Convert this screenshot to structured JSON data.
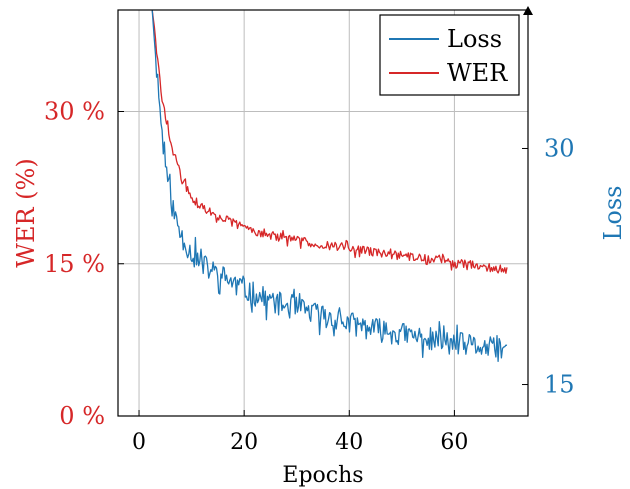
{
  "chart_data": {
    "type": "line",
    "xlabel": "Epochs",
    "ylabel_left": "WER (%)",
    "ylabel_right": "Loss",
    "x_range": [
      -4,
      74
    ],
    "left_axis": {
      "range": [
        0,
        40
      ],
      "ticks": [
        0,
        15,
        30
      ],
      "tick_labels": [
        "0 %",
        "15 %",
        "30 %"
      ]
    },
    "right_axis": {
      "range": [
        13.0,
        38.8
      ],
      "ticks": [
        15,
        30
      ],
      "tick_labels": [
        "15",
        "30"
      ]
    },
    "x_ticks": [
      0,
      20,
      40,
      60
    ],
    "x_tick_labels": [
      "0",
      "20",
      "40",
      "60"
    ],
    "grid": true,
    "legend_position": "top-right",
    "colors": {
      "loss": "#1f77b4",
      "wer": "#d62728"
    },
    "series": [
      {
        "name": "Loss",
        "axis": "right",
        "x": [
          2.5,
          3,
          3.5,
          4,
          4.5,
          5,
          6,
          7,
          8,
          10,
          12,
          15,
          18,
          20,
          25,
          30,
          35,
          40,
          45,
          50,
          55,
          60,
          65,
          68,
          70
        ],
        "values": [
          38.8,
          36.5,
          34.5,
          32.5,
          30.5,
          29.2,
          26.8,
          25.5,
          24.5,
          23.3,
          22.6,
          22.0,
          21.5,
          21.0,
          20.3,
          19.8,
          19.4,
          18.9,
          18.5,
          18.2,
          17.9,
          17.6,
          17.4,
          17.2,
          17.1
        ]
      },
      {
        "name": "WER",
        "axis": "left",
        "x": [
          2.5,
          3,
          3.5,
          4,
          4.5,
          5,
          6,
          7,
          8,
          10,
          12,
          15,
          18,
          20,
          25,
          30,
          35,
          40,
          45,
          50,
          55,
          60,
          65,
          68,
          70
        ],
        "values": [
          40,
          38,
          35,
          33,
          31,
          29.5,
          27,
          25.3,
          23.5,
          21.5,
          20.5,
          19.7,
          19.0,
          18.6,
          17.8,
          17.3,
          16.9,
          16.5,
          16.1,
          15.8,
          15.5,
          15.1,
          14.8,
          14.5,
          14.4
        ]
      }
    ]
  }
}
